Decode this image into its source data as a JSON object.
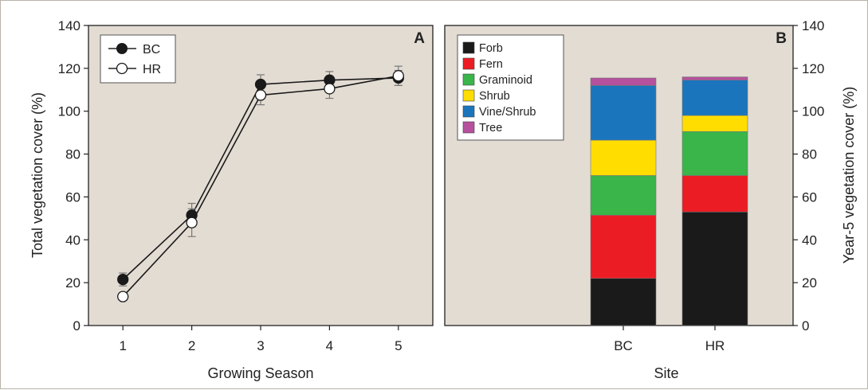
{
  "colors": {
    "panel_bg": "#e3dcd3",
    "axis": "#222222",
    "bc_marker": "#1a1a1a",
    "hr_marker": "#ffffff"
  },
  "panel_a": {
    "letter": "A",
    "xlabel": "Growing Season",
    "ylabel": "Total vegetation cover (%)"
  },
  "panel_b": {
    "letter": "B",
    "xlabel": "Site",
    "ylabel": "Year-5 vegetation cover (%)"
  },
  "chart_data": [
    {
      "type": "line",
      "title": "",
      "xlabel": "Growing Season",
      "ylabel": "Total vegetation cover (%)",
      "x": [
        1,
        2,
        3,
        4,
        5
      ],
      "xlim": [
        0.5,
        5.5
      ],
      "ylim": [
        0,
        140
      ],
      "yticks": [
        0,
        20,
        40,
        60,
        80,
        100,
        120,
        140
      ],
      "grid": false,
      "legend_position": "top-left",
      "series": [
        {
          "name": "BC",
          "marker": "filled-circle",
          "values": [
            21.5,
            51.5,
            112.5,
            114.5,
            115.5
          ],
          "errors": [
            3,
            5.5,
            4.5,
            4,
            3.5
          ]
        },
        {
          "name": "HR",
          "marker": "open-circle",
          "values": [
            13.5,
            48,
            107.5,
            110.5,
            116.5
          ],
          "errors": [
            0,
            6.5,
            4.5,
            4.5,
            4.5
          ]
        }
      ]
    },
    {
      "type": "bar",
      "stacked": true,
      "title": "",
      "xlabel": "Site",
      "ylabel": "Year-5 vegetation cover (%)",
      "categories": [
        "BC",
        "HR"
      ],
      "ylim": [
        0,
        140
      ],
      "yticks": [
        0,
        20,
        40,
        60,
        80,
        100,
        120,
        140
      ],
      "grid": false,
      "legend_position": "top-left",
      "series": [
        {
          "name": "Forb",
          "color": "#1a1a1a",
          "values": [
            22,
            53
          ]
        },
        {
          "name": "Fern",
          "color": "#ec1c24",
          "values": [
            29.5,
            17
          ]
        },
        {
          "name": "Graminoid",
          "color": "#39b54a",
          "values": [
            18.5,
            20.5
          ]
        },
        {
          "name": "Shrub",
          "color": "#ffdd00",
          "values": [
            16.5,
            7.5
          ]
        },
        {
          "name": "Vine/Shrub",
          "color": "#1b75bc",
          "values": [
            25.5,
            16.5
          ]
        },
        {
          "name": "Tree",
          "color": "#b5519d",
          "values": [
            3.5,
            1.5
          ]
        }
      ]
    }
  ]
}
